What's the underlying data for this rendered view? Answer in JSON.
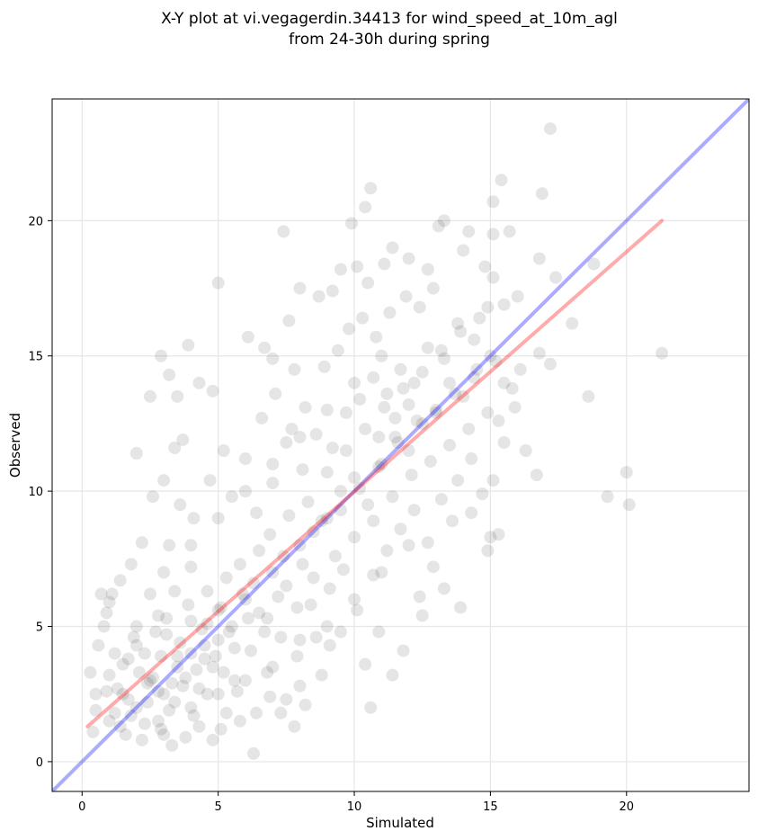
{
  "chart_data": {
    "type": "scatter",
    "title_lines": [
      "X-Y plot at vi.vegagerdin.34413 for wind_speed_at_10m_agl",
      "from 24-30h during spring"
    ],
    "xlabel": "Simulated",
    "ylabel": "Observed",
    "xlim": [
      -1.1,
      24.5
    ],
    "ylim": [
      -1.1,
      24.5
    ],
    "xticks": [
      0,
      5,
      10,
      15,
      20
    ],
    "yticks": [
      0,
      5,
      10,
      15,
      20
    ],
    "grid": true,
    "marker_color": "#000000",
    "marker_alpha": 0.1,
    "identity_line": {
      "from": [
        -1.1,
        -1.1
      ],
      "to": [
        24.5,
        24.5
      ],
      "color": "#0000ff"
    },
    "fit_line": {
      "from": [
        0.2,
        1.3
      ],
      "to": [
        21.3,
        20.0
      ],
      "color": "#ff0000"
    },
    "points": [
      [
        1.0,
        1.5
      ],
      [
        1.5,
        2.5
      ],
      [
        2.0,
        2.0
      ],
      [
        2.5,
        3.0
      ],
      [
        3.0,
        2.5
      ],
      [
        3.5,
        3.5
      ],
      [
        4.0,
        4.0
      ],
      [
        4.5,
        3.8
      ],
      [
        5.0,
        4.5
      ],
      [
        5.5,
        5.0
      ],
      [
        6.0,
        6.0
      ],
      [
        6.5,
        5.5
      ],
      [
        7.0,
        7.0
      ],
      [
        7.5,
        6.5
      ],
      [
        8.0,
        8.0
      ],
      [
        8.5,
        8.5
      ],
      [
        9.0,
        9.0
      ],
      [
        9.5,
        10.0
      ],
      [
        10.0,
        10.5
      ],
      [
        10.5,
        9.5
      ],
      [
        11.0,
        11.0
      ],
      [
        11.5,
        12.0
      ],
      [
        12.0,
        11.5
      ],
      [
        12.5,
        12.5
      ],
      [
        13.0,
        13.0
      ],
      [
        13.5,
        14.0
      ],
      [
        14.0,
        13.5
      ],
      [
        14.5,
        14.5
      ],
      [
        15.0,
        15.0
      ],
      [
        15.5,
        14.0
      ],
      [
        2.0,
        5.0
      ],
      [
        3.0,
        7.0
      ],
      [
        4.0,
        8.0
      ],
      [
        5.0,
        9.0
      ],
      [
        6.0,
        10.0
      ],
      [
        7.0,
        11.0
      ],
      [
        8.0,
        12.0
      ],
      [
        9.0,
        13.0
      ],
      [
        10.0,
        14.0
      ],
      [
        11.0,
        15.0
      ],
      [
        3.0,
        1.0
      ],
      [
        4.0,
        2.0
      ],
      [
        5.0,
        2.5
      ],
      [
        6.0,
        3.0
      ],
      [
        7.0,
        3.5
      ],
      [
        8.0,
        4.5
      ],
      [
        9.0,
        5.0
      ],
      [
        10.0,
        6.0
      ],
      [
        11.0,
        7.0
      ],
      [
        12.0,
        8.0
      ],
      [
        0.5,
        2.5
      ],
      [
        1.0,
        3.2
      ],
      [
        1.2,
        4.0
      ],
      [
        0.8,
        5.0
      ],
      [
        1.6,
        1.0
      ],
      [
        2.2,
        0.8
      ],
      [
        2.8,
        1.5
      ],
      [
        3.3,
        0.6
      ],
      [
        3.8,
        0.9
      ],
      [
        4.3,
        1.3
      ],
      [
        4.8,
        0.8
      ],
      [
        5.3,
        1.8
      ],
      [
        5.8,
        1.5
      ],
      [
        6.3,
        0.3
      ],
      [
        2.5,
        6.2
      ],
      [
        3.2,
        8.0
      ],
      [
        3.6,
        9.5
      ],
      [
        2.6,
        9.8
      ],
      [
        2.0,
        11.4
      ],
      [
        3.4,
        11.6
      ],
      [
        3.5,
        13.5
      ],
      [
        2.9,
        15.0
      ],
      [
        3.2,
        14.3
      ],
      [
        2.5,
        13.5
      ],
      [
        3.9,
        15.4
      ],
      [
        4.3,
        14.0
      ],
      [
        4.8,
        13.7
      ],
      [
        5.0,
        17.7
      ],
      [
        6.1,
        15.7
      ],
      [
        6.7,
        15.3
      ],
      [
        7.0,
        14.9
      ],
      [
        7.4,
        19.6
      ],
      [
        7.6,
        16.3
      ],
      [
        8.0,
        17.5
      ],
      [
        7.8,
        14.5
      ],
      [
        8.7,
        17.2
      ],
      [
        9.2,
        17.4
      ],
      [
        9.5,
        18.2
      ],
      [
        9.9,
        19.9
      ],
      [
        10.1,
        18.3
      ],
      [
        10.4,
        20.5
      ],
      [
        10.6,
        21.2
      ],
      [
        10.5,
        17.7
      ],
      [
        11.1,
        18.4
      ],
      [
        11.4,
        19.0
      ],
      [
        12.0,
        18.6
      ],
      [
        12.7,
        18.2
      ],
      [
        13.1,
        19.8
      ],
      [
        13.3,
        20.0
      ],
      [
        14.0,
        18.9
      ],
      [
        14.2,
        19.6
      ],
      [
        14.8,
        18.3
      ],
      [
        15.1,
        17.9
      ],
      [
        15.1,
        20.7
      ],
      [
        15.4,
        21.5
      ],
      [
        15.1,
        19.5
      ],
      [
        15.7,
        19.6
      ],
      [
        16.0,
        17.2
      ],
      [
        16.9,
        21.0
      ],
      [
        17.2,
        23.4
      ],
      [
        16.8,
        18.6
      ],
      [
        17.4,
        17.9
      ],
      [
        18.0,
        16.2
      ],
      [
        18.8,
        18.4
      ],
      [
        18.6,
        13.5
      ],
      [
        17.2,
        14.7
      ],
      [
        16.8,
        15.1
      ],
      [
        15.9,
        13.1
      ],
      [
        15.5,
        11.8
      ],
      [
        16.3,
        11.5
      ],
      [
        16.7,
        10.6
      ],
      [
        19.3,
        9.8
      ],
      [
        20.0,
        10.7
      ],
      [
        20.1,
        9.5
      ],
      [
        21.3,
        15.1
      ],
      [
        15.1,
        10.4
      ],
      [
        15.3,
        8.4
      ],
      [
        14.9,
        7.8
      ],
      [
        15.0,
        8.3
      ],
      [
        14.3,
        9.2
      ],
      [
        13.9,
        5.7
      ],
      [
        13.3,
        6.4
      ],
      [
        12.5,
        5.4
      ],
      [
        11.8,
        4.1
      ],
      [
        11.4,
        3.2
      ],
      [
        10.9,
        4.8
      ],
      [
        10.6,
        2.0
      ],
      [
        10.4,
        3.6
      ],
      [
        9.5,
        4.8
      ],
      [
        9.1,
        4.3
      ],
      [
        8.6,
        4.6
      ],
      [
        8.8,
        3.2
      ],
      [
        8.2,
        2.1
      ],
      [
        7.8,
        1.3
      ],
      [
        7.3,
        1.8
      ],
      [
        6.9,
        2.4
      ],
      [
        6.4,
        1.8
      ],
      [
        6.8,
        3.3
      ],
      [
        7.5,
        2.3
      ],
      [
        8.0,
        2.8
      ],
      [
        0.3,
        3.3
      ],
      [
        0.4,
        1.1
      ],
      [
        0.6,
        4.3
      ],
      [
        0.9,
        5.5
      ],
      [
        1.1,
        6.2
      ],
      [
        1.3,
        2.7
      ],
      [
        1.7,
        3.8
      ],
      [
        1.9,
        4.6
      ],
      [
        2.1,
        3.3
      ],
      [
        2.4,
        2.2
      ],
      [
        2.7,
        4.8
      ],
      [
        2.9,
        3.9
      ],
      [
        3.1,
        5.3
      ],
      [
        3.3,
        2.9
      ],
      [
        3.6,
        4.4
      ],
      [
        3.9,
        5.8
      ],
      [
        4.2,
        3.4
      ],
      [
        4.4,
        4.9
      ],
      [
        4.6,
        6.3
      ],
      [
        4.9,
        3.9
      ],
      [
        5.1,
        5.7
      ],
      [
        5.3,
        6.8
      ],
      [
        5.6,
        4.2
      ],
      [
        5.8,
        7.3
      ],
      [
        6.1,
        5.3
      ],
      [
        6.3,
        6.6
      ],
      [
        6.5,
        7.8
      ],
      [
        6.7,
        4.8
      ],
      [
        6.9,
        8.4
      ],
      [
        7.2,
        6.1
      ],
      [
        7.4,
        7.6
      ],
      [
        7.6,
        9.1
      ],
      [
        7.9,
        5.7
      ],
      [
        8.1,
        7.3
      ],
      [
        8.3,
        9.6
      ],
      [
        8.5,
        6.8
      ],
      [
        8.8,
        8.9
      ],
      [
        9.0,
        10.7
      ],
      [
        9.3,
        7.6
      ],
      [
        9.5,
        9.3
      ],
      [
        9.7,
        11.5
      ],
      [
        10.0,
        8.3
      ],
      [
        10.2,
        10.1
      ],
      [
        10.4,
        12.3
      ],
      [
        10.7,
        8.9
      ],
      [
        10.9,
        10.9
      ],
      [
        11.1,
        13.1
      ],
      [
        11.4,
        9.8
      ],
      [
        11.6,
        11.8
      ],
      [
        11.8,
        13.8
      ],
      [
        12.1,
        10.6
      ],
      [
        12.3,
        12.6
      ],
      [
        12.5,
        14.4
      ],
      [
        12.8,
        11.1
      ],
      [
        13.0,
        12.9
      ],
      [
        13.2,
        15.2
      ],
      [
        13.5,
        11.7
      ],
      [
        13.7,
        13.6
      ],
      [
        13.9,
        15.9
      ],
      [
        14.2,
        12.3
      ],
      [
        14.4,
        14.2
      ],
      [
        14.6,
        16.4
      ],
      [
        14.9,
        12.9
      ],
      [
        15.2,
        14.8
      ],
      [
        15.5,
        16.9
      ],
      [
        5.5,
        9.8
      ],
      [
        6.0,
        11.2
      ],
      [
        6.6,
        12.7
      ],
      [
        7.1,
        13.6
      ],
      [
        7.7,
        12.3
      ],
      [
        8.2,
        13.1
      ],
      [
        8.9,
        14.6
      ],
      [
        9.4,
        15.2
      ],
      [
        9.8,
        16.0
      ],
      [
        10.3,
        16.4
      ],
      [
        10.8,
        15.7
      ],
      [
        11.3,
        16.6
      ],
      [
        11.9,
        17.2
      ],
      [
        12.4,
        16.8
      ],
      [
        12.9,
        17.5
      ],
      [
        4.1,
        9.0
      ],
      [
        4.7,
        10.4
      ],
      [
        5.2,
        11.5
      ],
      [
        3.0,
        10.4
      ],
      [
        3.7,
        11.9
      ],
      [
        2.2,
        8.1
      ],
      [
        1.8,
        7.3
      ],
      [
        1.4,
        6.7
      ],
      [
        1.0,
        5.9
      ],
      [
        0.7,
        6.2
      ],
      [
        2.3,
        4.0
      ],
      [
        2.8,
        5.4
      ],
      [
        3.4,
        6.3
      ],
      [
        4.0,
        7.2
      ],
      [
        4.6,
        5.1
      ],
      [
        5.2,
        3.3
      ],
      [
        5.7,
        2.6
      ],
      [
        6.2,
        4.1
      ],
      [
        6.8,
        5.3
      ],
      [
        7.3,
        4.6
      ],
      [
        7.9,
        3.9
      ],
      [
        8.4,
        5.8
      ],
      [
        9.1,
        6.4
      ],
      [
        9.6,
        7.1
      ],
      [
        10.1,
        5.6
      ],
      [
        10.7,
        6.9
      ],
      [
        11.2,
        7.8
      ],
      [
        11.7,
        8.6
      ],
      [
        12.2,
        9.3
      ],
      [
        12.7,
        8.1
      ],
      [
        13.2,
        9.7
      ],
      [
        13.8,
        10.4
      ],
      [
        14.3,
        11.2
      ],
      [
        14.7,
        9.9
      ],
      [
        15.3,
        12.6
      ],
      [
        15.8,
        13.8
      ],
      [
        16.1,
        14.5
      ],
      [
        13.6,
        8.9
      ],
      [
        12.9,
        7.2
      ],
      [
        12.4,
        6.1
      ],
      [
        1.2,
        1.8
      ],
      [
        1.7,
        2.3
      ],
      [
        2.3,
        1.4
      ],
      [
        2.8,
        2.6
      ],
      [
        3.2,
        1.9
      ],
      [
        3.7,
        2.8
      ],
      [
        4.1,
        1.7
      ],
      [
        4.6,
        2.5
      ],
      [
        5.1,
        1.2
      ],
      [
        5.6,
        3.0
      ],
      [
        1.5,
        3.6
      ],
      [
        2.0,
        4.3
      ],
      [
        2.6,
        3.1
      ],
      [
        3.1,
        4.7
      ],
      [
        3.5,
        3.9
      ],
      [
        4.0,
        5.2
      ],
      [
        4.5,
        4.3
      ],
      [
        5.0,
        5.6
      ],
      [
        5.4,
        4.8
      ],
      [
        5.9,
        6.2
      ],
      [
        0.5,
        1.9
      ],
      [
        0.9,
        2.6
      ],
      [
        1.4,
        1.3
      ],
      [
        1.8,
        1.7
      ],
      [
        2.4,
        2.9
      ],
      [
        2.9,
        1.2
      ],
      [
        3.4,
        2.2
      ],
      [
        3.8,
        3.1
      ],
      [
        4.3,
        2.7
      ],
      [
        4.8,
        3.5
      ],
      [
        6.4,
        9.2
      ],
      [
        7.0,
        10.3
      ],
      [
        7.5,
        11.8
      ],
      [
        8.1,
        10.8
      ],
      [
        8.6,
        12.1
      ],
      [
        9.2,
        11.6
      ],
      [
        9.7,
        12.9
      ],
      [
        10.2,
        13.4
      ],
      [
        10.7,
        14.2
      ],
      [
        11.2,
        13.6
      ],
      [
        11.7,
        14.5
      ],
      [
        12.2,
        14.0
      ],
      [
        12.7,
        15.3
      ],
      [
        13.3,
        14.9
      ],
      [
        13.8,
        16.2
      ],
      [
        14.4,
        15.6
      ],
      [
        14.9,
        16.8
      ],
      [
        11.5,
        12.7
      ],
      [
        12.0,
        13.2
      ],
      [
        10.9,
        12.0
      ]
    ]
  }
}
